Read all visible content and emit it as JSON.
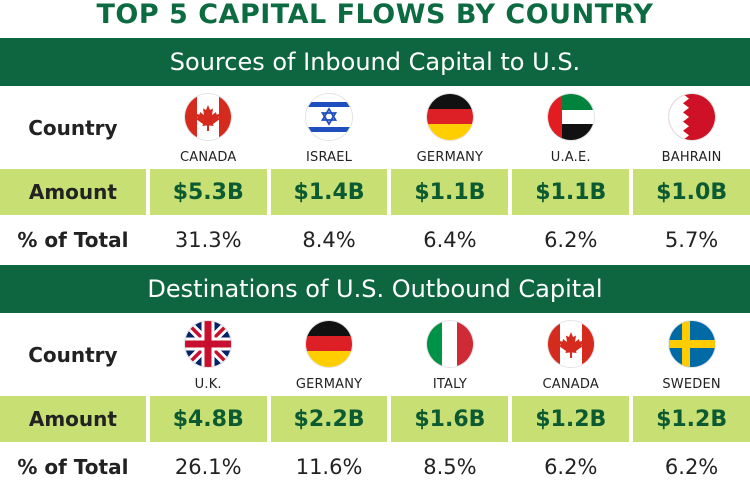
{
  "title": "TOP 5 CAPITAL FLOWS BY COUNTRY",
  "colors": {
    "banner": "#0e6640",
    "title": "#0c6b41",
    "amount_bg": "#c7df73",
    "amount_text": "#0c5a32"
  },
  "chart_data": [
    {
      "type": "table",
      "title": "Sources of Inbound Capital to U.S.",
      "row_labels": {
        "country": "Country",
        "amount": "Amount",
        "pct": "% of Total"
      },
      "countries": [
        {
          "name": "CANADA",
          "flag": "canada-flag-icon",
          "amount": "$5.3B",
          "pct": "31.3%"
        },
        {
          "name": "ISRAEL",
          "flag": "israel-flag-icon",
          "amount": "$1.4B",
          "pct": "8.4%"
        },
        {
          "name": "GERMANY",
          "flag": "germany-flag-icon",
          "amount": "$1.1B",
          "pct": "6.4%"
        },
        {
          "name": "U.A.E.",
          "flag": "uae-flag-icon",
          "amount": "$1.1B",
          "pct": "6.2%"
        },
        {
          "name": "BAHRAIN",
          "flag": "bahrain-flag-icon",
          "amount": "$1.0B",
          "pct": "5.7%"
        }
      ]
    },
    {
      "type": "table",
      "title": "Destinations of U.S. Outbound Capital",
      "row_labels": {
        "country": "Country",
        "amount": "Amount",
        "pct": "% of Total"
      },
      "countries": [
        {
          "name": "U.K.",
          "flag": "uk-flag-icon",
          "amount": "$4.8B",
          "pct": "26.1%"
        },
        {
          "name": "GERMANY",
          "flag": "germany-flag-icon",
          "amount": "$2.2B",
          "pct": "11.6%"
        },
        {
          "name": "ITALY",
          "flag": "italy-flag-icon",
          "amount": "$1.6B",
          "pct": "8.5%"
        },
        {
          "name": "CANADA",
          "flag": "canada-flag-icon",
          "amount": "$1.2B",
          "pct": "6.2%"
        },
        {
          "name": "SWEDEN",
          "flag": "sweden-flag-icon",
          "amount": "$1.2B",
          "pct": "6.2%"
        }
      ]
    }
  ]
}
